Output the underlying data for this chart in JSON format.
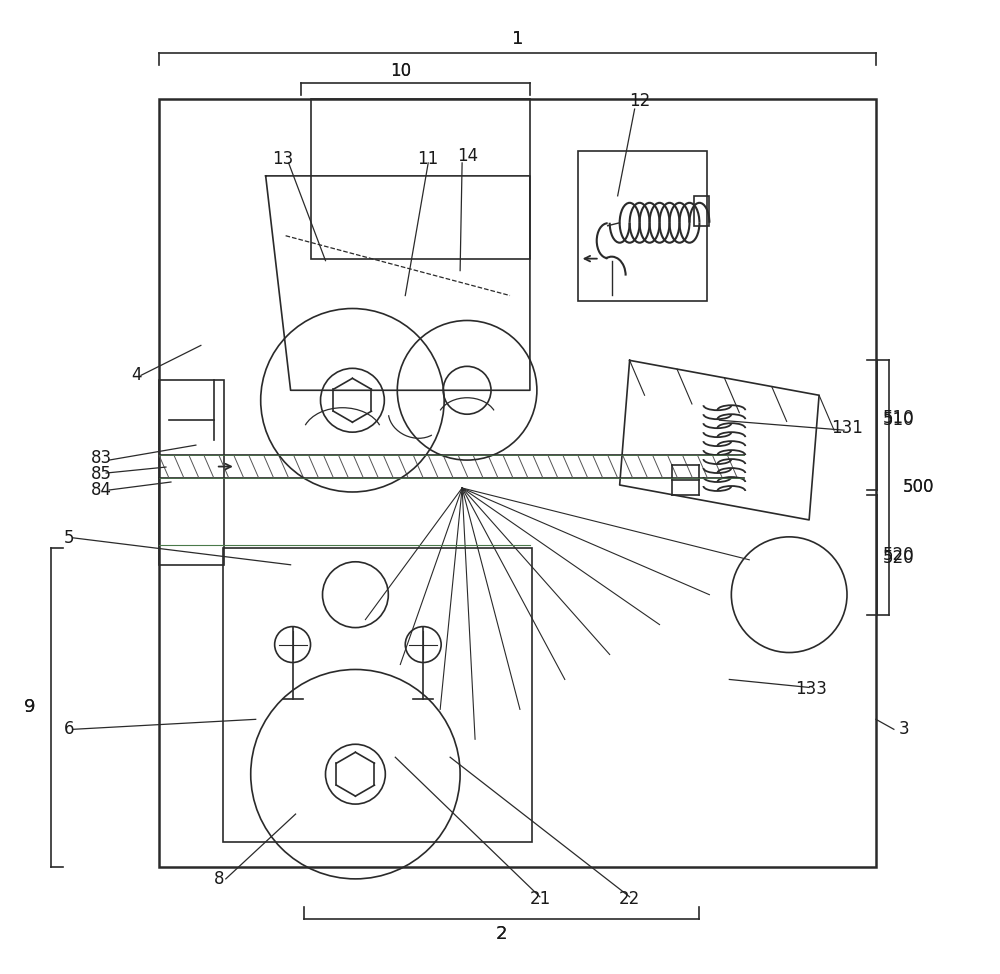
{
  "bg_color": "#ffffff",
  "line_color": "#2a2a2a",
  "label_color": "#1a1a1a",
  "figsize": [
    10.0,
    9.74
  ],
  "dpi": 100,
  "green_color": "#4a7a4a",
  "purple_color": "#9966cc"
}
